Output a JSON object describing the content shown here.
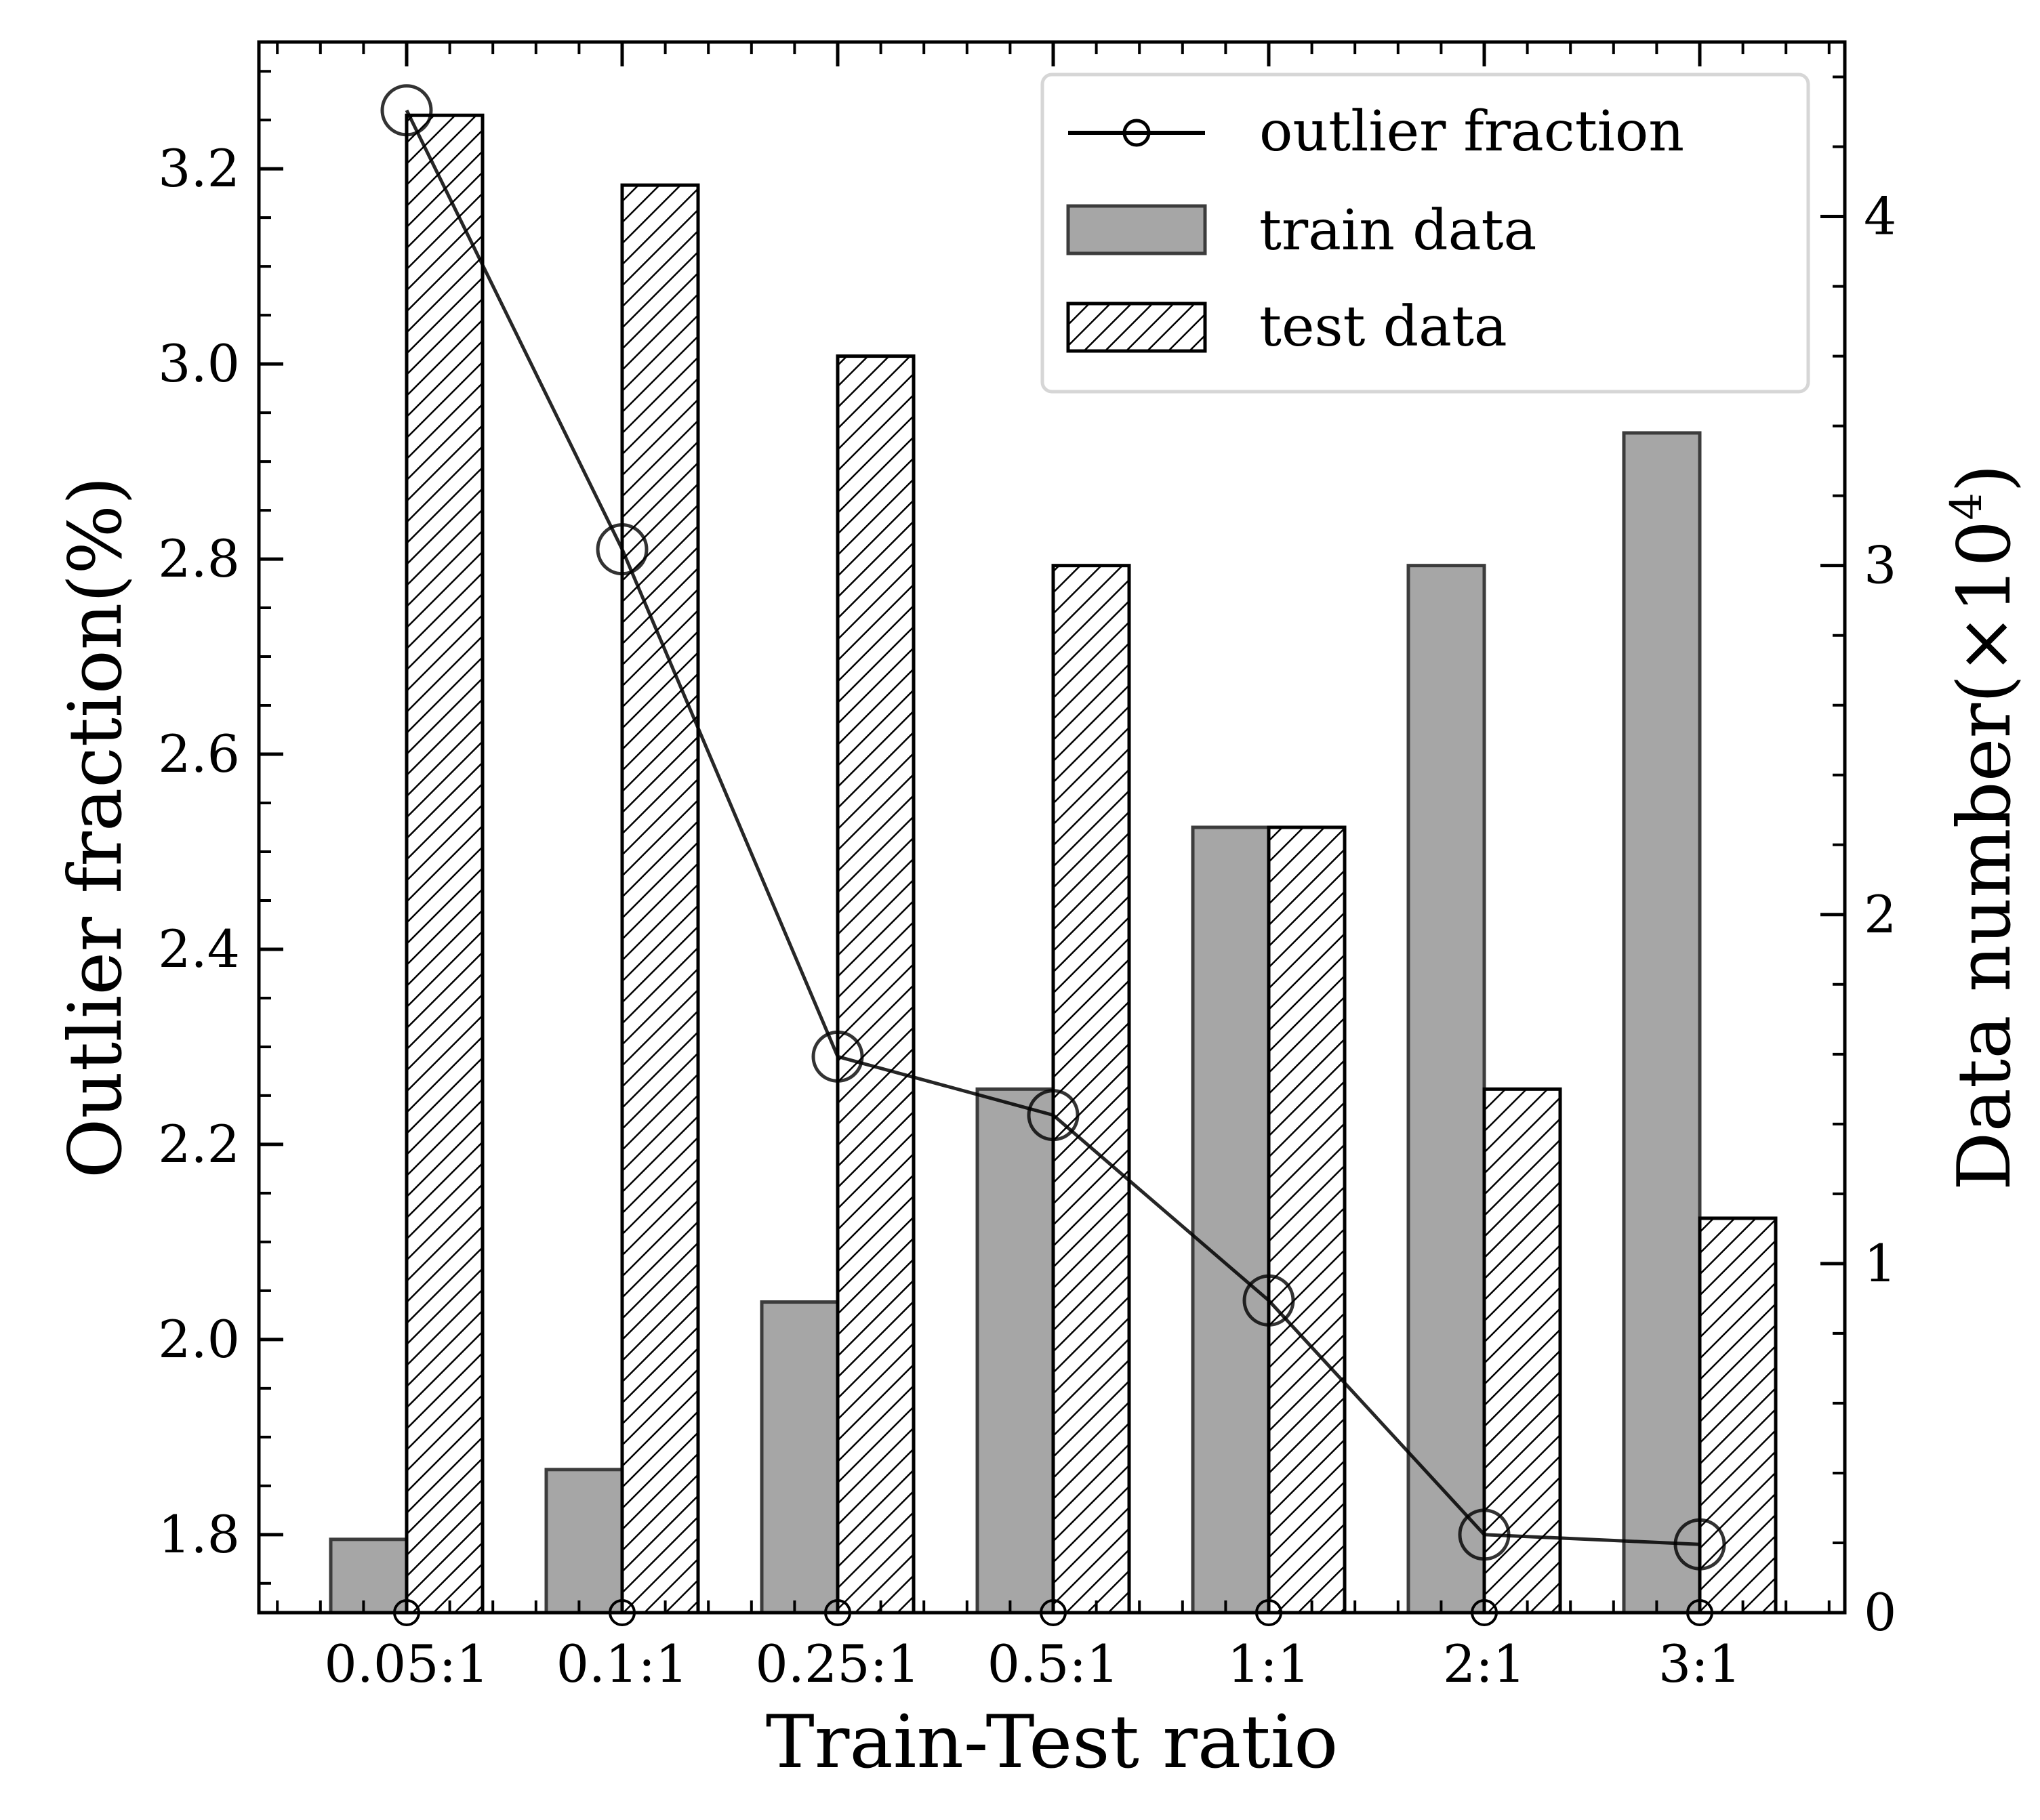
{
  "chart_data": {
    "type": "bar",
    "categories": [
      "0.05:1",
      "0.1:1",
      "0.25:1",
      "0.5:1",
      "1:1",
      "2:1",
      "3:1"
    ],
    "xlabel": "Train-Test ratio",
    "ylabel_left": "Outlier fraction(%)",
    "ylabel_right_base": "Data number(×10",
    "ylabel_right_exp": "4",
    "ylabel_right_close": ")",
    "ylim_left": [
      1.72,
      3.33
    ],
    "ylim_right": [
      0,
      4.5
    ],
    "left_ticks": [
      "1.8",
      "2.0",
      "2.2",
      "2.4",
      "2.6",
      "2.8",
      "3.0",
      "3.2"
    ],
    "right_ticks": [
      "0",
      "1",
      "2",
      "3",
      "4"
    ],
    "series": [
      {
        "name": "train data",
        "axis": "right",
        "kind": "bar",
        "style": "solid",
        "color": "#a6a6a6",
        "values": [
          0.21,
          0.41,
          0.89,
          1.5,
          2.25,
          3.0,
          3.38
        ]
      },
      {
        "name": "test data",
        "axis": "right",
        "kind": "bar",
        "style": "hatch",
        "color": "#ffffff",
        "values": [
          4.29,
          4.09,
          3.6,
          3.0,
          2.25,
          1.5,
          1.13
        ]
      },
      {
        "name": "outlier fraction",
        "axis": "left",
        "kind": "line",
        "color": "#000000",
        "values": [
          3.26,
          2.81,
          2.29,
          2.23,
          2.04,
          1.8,
          1.79
        ]
      }
    ],
    "legend_position": "top-right",
    "grid": false
  }
}
